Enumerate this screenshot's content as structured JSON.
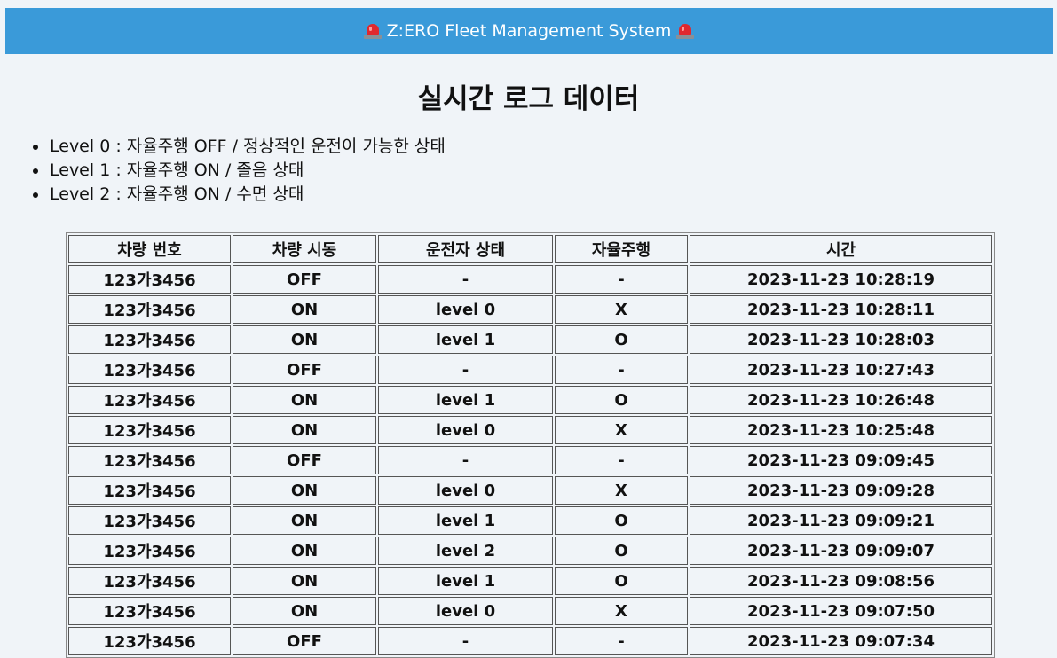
{
  "header": {
    "title": "Z:ERO Fleet Management System",
    "left_icon": "siren-icon",
    "right_icon": "siren-icon",
    "background": "#3a9ad9"
  },
  "page_title": "실시간 로그 데이터",
  "levels": [
    "Level 0 : 자율주행 OFF / 정상적인 운전이 가능한 상태",
    "Level 1 : 자율주행 ON / 졸음 상태",
    "Level 2 : 자율주행 ON / 수면 상태"
  ],
  "table": {
    "columns": [
      "차량 번호",
      "차량 시동",
      "운전자 상태",
      "자율주행",
      "시간"
    ],
    "rows": [
      [
        "123가3456",
        "OFF",
        "-",
        "-",
        "2023-11-23 10:28:19"
      ],
      [
        "123가3456",
        "ON",
        "level 0",
        "X",
        "2023-11-23 10:28:11"
      ],
      [
        "123가3456",
        "ON",
        "level 1",
        "O",
        "2023-11-23 10:28:03"
      ],
      [
        "123가3456",
        "OFF",
        "-",
        "-",
        "2023-11-23 10:27:43"
      ],
      [
        "123가3456",
        "ON",
        "level 1",
        "O",
        "2023-11-23 10:26:48"
      ],
      [
        "123가3456",
        "ON",
        "level 0",
        "X",
        "2023-11-23 10:25:48"
      ],
      [
        "123가3456",
        "OFF",
        "-",
        "-",
        "2023-11-23 09:09:45"
      ],
      [
        "123가3456",
        "ON",
        "level 0",
        "X",
        "2023-11-23 09:09:28"
      ],
      [
        "123가3456",
        "ON",
        "level 1",
        "O",
        "2023-11-23 09:09:21"
      ],
      [
        "123가3456",
        "ON",
        "level 2",
        "O",
        "2023-11-23 09:09:07"
      ],
      [
        "123가3456",
        "ON",
        "level 1",
        "O",
        "2023-11-23 09:08:56"
      ],
      [
        "123가3456",
        "ON",
        "level 0",
        "X",
        "2023-11-23 09:07:50"
      ],
      [
        "123가3456",
        "OFF",
        "-",
        "-",
        "2023-11-23 09:07:34"
      ]
    ]
  }
}
